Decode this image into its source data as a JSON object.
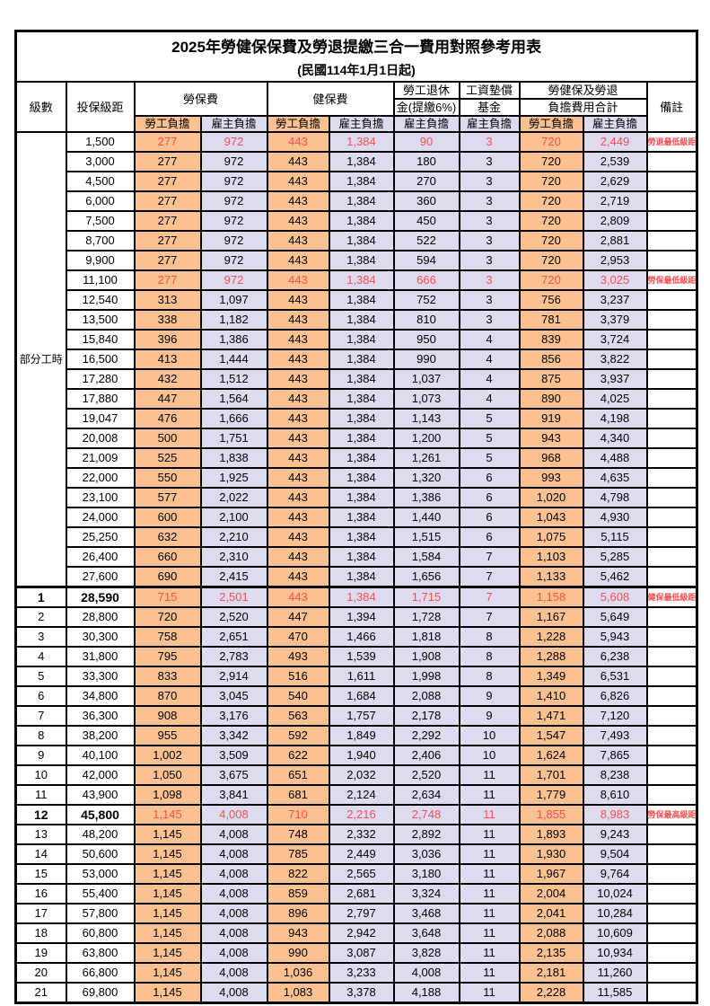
{
  "title": "2025年勞健保保費及勞退提繳三合一費用對照參考用表",
  "subtitle": "(民國114年1月1日起)",
  "colors": {
    "employee_fill": "#FBC191",
    "employer_fill": "#DEDAEF",
    "highlight_text": "#F85050",
    "border": "#000000"
  },
  "header": {
    "level": "級數",
    "bracket": "投保級距",
    "labor_insurance": "勞保費",
    "health_insurance": "健保費",
    "pension_line1": "勞工退休",
    "pension_line2": "金(提繳6%)",
    "wage_fund_line1": "工資墊償",
    "wage_fund_line2": "基金",
    "total_line1": "勞健保及勞退",
    "total_line2": "負擔費用合計",
    "remark": "備註",
    "employee": "勞工負擔",
    "employer": "雇主負擔"
  },
  "part_time_label": "部分工時",
  "rows": [
    {
      "lv": "",
      "bk": "1,500",
      "v": [
        "277",
        "972",
        "443",
        "1,384",
        "90",
        "3",
        "720",
        "2,449"
      ],
      "rm": "勞退最低級距",
      "red": true
    },
    {
      "lv": "",
      "bk": "3,000",
      "v": [
        "277",
        "972",
        "443",
        "1,384",
        "180",
        "3",
        "720",
        "2,539"
      ],
      "rm": ""
    },
    {
      "lv": "",
      "bk": "4,500",
      "v": [
        "277",
        "972",
        "443",
        "1,384",
        "270",
        "3",
        "720",
        "2,629"
      ],
      "rm": ""
    },
    {
      "lv": "",
      "bk": "6,000",
      "v": [
        "277",
        "972",
        "443",
        "1,384",
        "360",
        "3",
        "720",
        "2,719"
      ],
      "rm": ""
    },
    {
      "lv": "",
      "bk": "7,500",
      "v": [
        "277",
        "972",
        "443",
        "1,384",
        "450",
        "3",
        "720",
        "2,809"
      ],
      "rm": ""
    },
    {
      "lv": "",
      "bk": "8,700",
      "v": [
        "277",
        "972",
        "443",
        "1,384",
        "522",
        "3",
        "720",
        "2,881"
      ],
      "rm": ""
    },
    {
      "lv": "",
      "bk": "9,900",
      "v": [
        "277",
        "972",
        "443",
        "1,384",
        "594",
        "3",
        "720",
        "2,953"
      ],
      "rm": ""
    },
    {
      "lv": "",
      "bk": "11,100",
      "v": [
        "277",
        "972",
        "443",
        "1,384",
        "666",
        "3",
        "720",
        "3,025"
      ],
      "rm": "勞保最低級距",
      "red": true
    },
    {
      "lv": "",
      "bk": "12,540",
      "v": [
        "313",
        "1,097",
        "443",
        "1,384",
        "752",
        "3",
        "756",
        "3,237"
      ],
      "rm": ""
    },
    {
      "lv": "",
      "bk": "13,500",
      "v": [
        "338",
        "1,182",
        "443",
        "1,384",
        "810",
        "3",
        "781",
        "3,379"
      ],
      "rm": ""
    },
    {
      "lv": "",
      "bk": "15,840",
      "v": [
        "396",
        "1,386",
        "443",
        "1,384",
        "950",
        "4",
        "839",
        "3,724"
      ],
      "rm": ""
    },
    {
      "lv": "",
      "bk": "16,500",
      "v": [
        "413",
        "1,444",
        "443",
        "1,384",
        "990",
        "4",
        "856",
        "3,822"
      ],
      "rm": ""
    },
    {
      "lv": "",
      "bk": "17,280",
      "v": [
        "432",
        "1,512",
        "443",
        "1,384",
        "1,037",
        "4",
        "875",
        "3,937"
      ],
      "rm": ""
    },
    {
      "lv": "",
      "bk": "17,880",
      "v": [
        "447",
        "1,564",
        "443",
        "1,384",
        "1,073",
        "4",
        "890",
        "4,025"
      ],
      "rm": ""
    },
    {
      "lv": "",
      "bk": "19,047",
      "v": [
        "476",
        "1,666",
        "443",
        "1,384",
        "1,143",
        "5",
        "919",
        "4,198"
      ],
      "rm": ""
    },
    {
      "lv": "",
      "bk": "20,008",
      "v": [
        "500",
        "1,751",
        "443",
        "1,384",
        "1,200",
        "5",
        "943",
        "4,340"
      ],
      "rm": ""
    },
    {
      "lv": "",
      "bk": "21,009",
      "v": [
        "525",
        "1,838",
        "443",
        "1,384",
        "1,261",
        "5",
        "968",
        "4,488"
      ],
      "rm": ""
    },
    {
      "lv": "",
      "bk": "22,000",
      "v": [
        "550",
        "1,925",
        "443",
        "1,384",
        "1,320",
        "6",
        "993",
        "4,635"
      ],
      "rm": ""
    },
    {
      "lv": "",
      "bk": "23,100",
      "v": [
        "577",
        "2,022",
        "443",
        "1,384",
        "1,386",
        "6",
        "1,020",
        "4,798"
      ],
      "rm": ""
    },
    {
      "lv": "",
      "bk": "24,000",
      "v": [
        "600",
        "2,100",
        "443",
        "1,384",
        "1,440",
        "6",
        "1,043",
        "4,930"
      ],
      "rm": ""
    },
    {
      "lv": "",
      "bk": "25,250",
      "v": [
        "632",
        "2,210",
        "443",
        "1,384",
        "1,515",
        "6",
        "1,075",
        "5,115"
      ],
      "rm": ""
    },
    {
      "lv": "",
      "bk": "26,400",
      "v": [
        "660",
        "2,310",
        "443",
        "1,384",
        "1,584",
        "7",
        "1,103",
        "5,285"
      ],
      "rm": ""
    },
    {
      "lv": "",
      "bk": "27,600",
      "v": [
        "690",
        "2,415",
        "443",
        "1,384",
        "1,656",
        "7",
        "1,133",
        "5,462"
      ],
      "rm": ""
    },
    {
      "lv": "1",
      "bk": "28,590",
      "v": [
        "715",
        "2,501",
        "443",
        "1,384",
        "1,715",
        "7",
        "1,158",
        "5,608"
      ],
      "rm": "健保最低級距",
      "red": true,
      "bold": true
    },
    {
      "lv": "2",
      "bk": "28,800",
      "v": [
        "720",
        "2,520",
        "447",
        "1,394",
        "1,728",
        "7",
        "1,167",
        "5,649"
      ],
      "rm": ""
    },
    {
      "lv": "3",
      "bk": "30,300",
      "v": [
        "758",
        "2,651",
        "470",
        "1,466",
        "1,818",
        "8",
        "1,228",
        "5,943"
      ],
      "rm": ""
    },
    {
      "lv": "4",
      "bk": "31,800",
      "v": [
        "795",
        "2,783",
        "493",
        "1,539",
        "1,908",
        "8",
        "1,288",
        "6,238"
      ],
      "rm": ""
    },
    {
      "lv": "5",
      "bk": "33,300",
      "v": [
        "833",
        "2,914",
        "516",
        "1,611",
        "1,998",
        "8",
        "1,349",
        "6,531"
      ],
      "rm": ""
    },
    {
      "lv": "6",
      "bk": "34,800",
      "v": [
        "870",
        "3,045",
        "540",
        "1,684",
        "2,088",
        "9",
        "1,410",
        "6,826"
      ],
      "rm": ""
    },
    {
      "lv": "7",
      "bk": "36,300",
      "v": [
        "908",
        "3,176",
        "563",
        "1,757",
        "2,178",
        "9",
        "1,471",
        "7,120"
      ],
      "rm": ""
    },
    {
      "lv": "8",
      "bk": "38,200",
      "v": [
        "955",
        "3,342",
        "592",
        "1,849",
        "2,292",
        "10",
        "1,547",
        "7,493"
      ],
      "rm": ""
    },
    {
      "lv": "9",
      "bk": "40,100",
      "v": [
        "1,002",
        "3,509",
        "622",
        "1,940",
        "2,406",
        "10",
        "1,624",
        "7,865"
      ],
      "rm": ""
    },
    {
      "lv": "10",
      "bk": "42,000",
      "v": [
        "1,050",
        "3,675",
        "651",
        "2,032",
        "2,520",
        "11",
        "1,701",
        "8,238"
      ],
      "rm": ""
    },
    {
      "lv": "11",
      "bk": "43,900",
      "v": [
        "1,098",
        "3,841",
        "681",
        "2,124",
        "2,634",
        "11",
        "1,779",
        "8,610"
      ],
      "rm": ""
    },
    {
      "lv": "12",
      "bk": "45,800",
      "v": [
        "1,145",
        "4,008",
        "710",
        "2,216",
        "2,748",
        "11",
        "1,855",
        "8,983"
      ],
      "rm": "勞保最高級距",
      "red": true,
      "bold": true
    },
    {
      "lv": "13",
      "bk": "48,200",
      "v": [
        "1,145",
        "4,008",
        "748",
        "2,332",
        "2,892",
        "11",
        "1,893",
        "9,243"
      ],
      "rm": ""
    },
    {
      "lv": "14",
      "bk": "50,600",
      "v": [
        "1,145",
        "4,008",
        "785",
        "2,449",
        "3,036",
        "11",
        "1,930",
        "9,504"
      ],
      "rm": ""
    },
    {
      "lv": "15",
      "bk": "53,000",
      "v": [
        "1,145",
        "4,008",
        "822",
        "2,565",
        "3,180",
        "11",
        "1,967",
        "9,764"
      ],
      "rm": ""
    },
    {
      "lv": "16",
      "bk": "55,400",
      "v": [
        "1,145",
        "4,008",
        "859",
        "2,681",
        "3,324",
        "11",
        "2,004",
        "10,024"
      ],
      "rm": ""
    },
    {
      "lv": "17",
      "bk": "57,800",
      "v": [
        "1,145",
        "4,008",
        "896",
        "2,797",
        "3,468",
        "11",
        "2,041",
        "10,284"
      ],
      "rm": ""
    },
    {
      "lv": "18",
      "bk": "60,800",
      "v": [
        "1,145",
        "4,008",
        "943",
        "2,942",
        "3,648",
        "11",
        "2,088",
        "10,609"
      ],
      "rm": ""
    },
    {
      "lv": "19",
      "bk": "63,800",
      "v": [
        "1,145",
        "4,008",
        "990",
        "3,087",
        "3,828",
        "11",
        "2,135",
        "10,934"
      ],
      "rm": ""
    },
    {
      "lv": "20",
      "bk": "66,800",
      "v": [
        "1,145",
        "4,008",
        "1,036",
        "3,233",
        "4,008",
        "11",
        "2,181",
        "11,260"
      ],
      "rm": ""
    },
    {
      "lv": "21",
      "bk": "69,800",
      "v": [
        "1,145",
        "4,008",
        "1,083",
        "3,378",
        "4,188",
        "11",
        "2,228",
        "11,585"
      ],
      "rm": ""
    }
  ]
}
